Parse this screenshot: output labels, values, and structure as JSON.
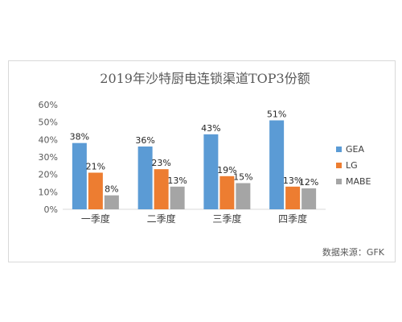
{
  "chart_data": {
    "type": "bar",
    "title": "2019年沙特厨电连锁渠道TOP3份额",
    "categories": [
      "一季度",
      "二季度",
      "三季度",
      "四季度"
    ],
    "series": [
      {
        "name": "GEA",
        "values": [
          38,
          36,
          43,
          51
        ],
        "labels": [
          "38%",
          "36%",
          "43%",
          "51%"
        ],
        "color": "#5b9bd5"
      },
      {
        "name": "LG",
        "values": [
          21,
          23,
          19,
          13
        ],
        "labels": [
          "21%",
          "23%",
          "19%",
          "13%"
        ],
        "color": "#ed7d31"
      },
      {
        "name": "MABE",
        "values": [
          8,
          13,
          15,
          12
        ],
        "labels": [
          "8%",
          "13%",
          "15%",
          "12%"
        ],
        "color": "#a5a5a5"
      }
    ],
    "ylim": [
      0,
      60
    ],
    "yticks": [
      0,
      10,
      20,
      30,
      40,
      50,
      60
    ],
    "ytick_labels": [
      "0%",
      "10%",
      "20%",
      "30%",
      "40%",
      "50%",
      "60%"
    ],
    "grid": false,
    "legend": "right"
  },
  "source_note": "数据来源：GFK"
}
